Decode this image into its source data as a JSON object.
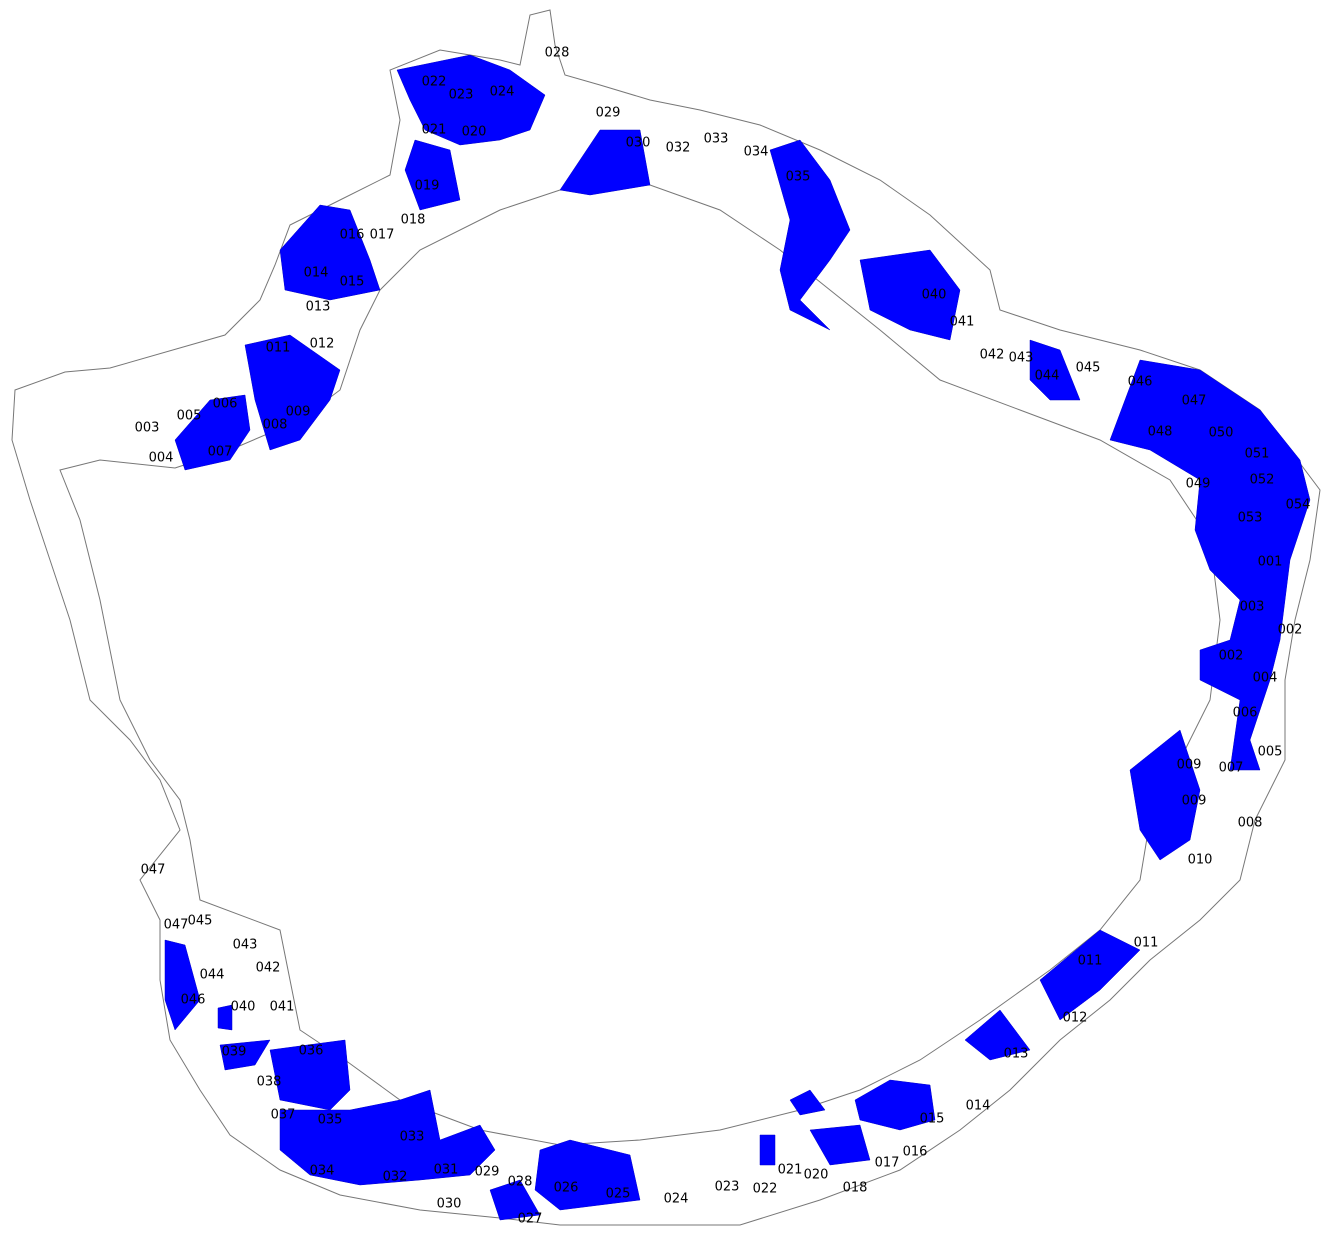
{
  "labels": [
    "028",
    "022",
    "023",
    "024",
    "021",
    "020",
    "019",
    "018",
    "016",
    "017",
    "014",
    "015",
    "013",
    "012",
    "011",
    "005",
    "006",
    "003",
    "004",
    "007",
    "008",
    "009",
    "029",
    "030",
    "032",
    "033",
    "034",
    "035",
    "040",
    "041",
    "042",
    "043",
    "044",
    "045",
    "046",
    "047",
    "048",
    "050",
    "051",
    "049",
    "052",
    "054",
    "053",
    "001",
    "003",
    "002",
    "002",
    "004",
    "006",
    "005",
    "009",
    "007",
    "009",
    "008",
    "010",
    "011",
    "011",
    "012",
    "013",
    "014",
    "015",
    "016",
    "017",
    "018",
    "020",
    "021",
    "022",
    "023",
    "024",
    "025",
    "026",
    "027",
    "028",
    "029",
    "030",
    "031",
    "032",
    "033",
    "034",
    "035",
    "037",
    "038",
    "036",
    "039",
    "040",
    "041",
    "046",
    "044",
    "042",
    "043",
    "047",
    "045",
    "047"
  ]
}
